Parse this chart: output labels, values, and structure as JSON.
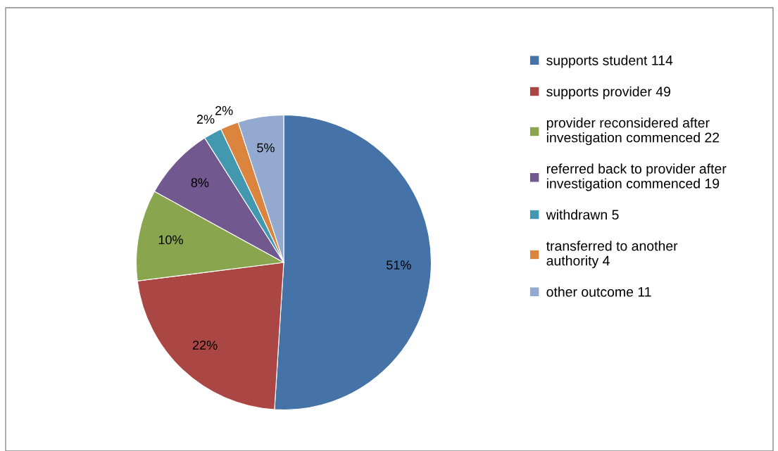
{
  "chart_data": {
    "type": "pie",
    "categories": [
      "supports student 114",
      "supports provider 49",
      "provider reconsidered after\ninvestigation commenced 22",
      "referred back to provider after\ninvestigation commenced 19",
      "withdrawn 5",
      "transferred to another\nauthority 4",
      "other outcome 11"
    ],
    "values": [
      51,
      22,
      10,
      8,
      2,
      2,
      5
    ],
    "value_labels": [
      "51%",
      "22%",
      "10%",
      "8%",
      "2%",
      "2%",
      "5%"
    ],
    "colors": [
      "#4572a7",
      "#aa4643",
      "#89a54e",
      "#71588f",
      "#4198af",
      "#db843d",
      "#93a9cf"
    ],
    "legend": "right"
  }
}
